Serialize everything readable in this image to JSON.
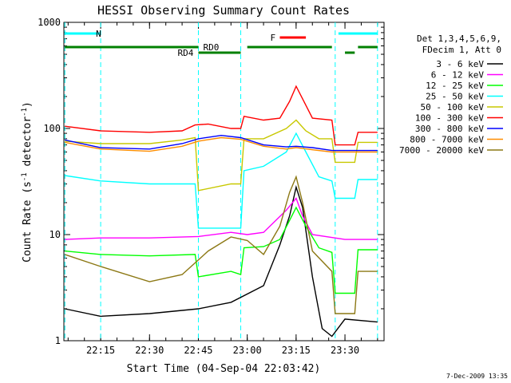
{
  "chart_data": {
    "type": "line",
    "title": "HESSI Observing Summary Count Rates",
    "xlabel": "Start Time (04-Sep-04 22:03:42)",
    "ylabel_main": "Count Rate (s",
    "ylabel_sup": "-1",
    "ylabel_mid": " detector",
    "ylabel_end": ")",
    "y_scale": "log",
    "ylim": [
      1,
      1000
    ],
    "xlim": [
      "22:03:42",
      "23:42:00"
    ],
    "y_ticks": [
      "1",
      "10",
      "100",
      "1000"
    ],
    "x_ticks": [
      "22:15",
      "22:30",
      "22:45",
      "23:00",
      "23:15",
      "23:30"
    ],
    "grid": false,
    "legend_placement": "right",
    "legend_header": [
      "Det 1,3,4,5,6,9,",
      "FDecim 1, Att 0"
    ],
    "footer": "7-Dec-2009 13:35",
    "series": [
      {
        "name": "3 - 6 keV",
        "color": "#000000",
        "points": [
          [
            "22:04",
            2.0
          ],
          [
            "22:15",
            1.7
          ],
          [
            "22:30",
            1.8
          ],
          [
            "22:45",
            2.0
          ],
          [
            "22:55",
            2.3
          ],
          [
            "23:05",
            3.3
          ],
          [
            "23:10",
            8
          ],
          [
            "23:13",
            15
          ],
          [
            "23:15",
            28
          ],
          [
            "23:17",
            18
          ],
          [
            "23:20",
            4
          ],
          [
            "23:23",
            1.3
          ],
          [
            "23:26",
            1.1
          ],
          [
            "23:30",
            1.6
          ],
          [
            "23:40",
            1.5
          ]
        ]
      },
      {
        "name": "6 - 12 keV",
        "color": "#ff00ff",
        "points": [
          [
            "22:04",
            9.0
          ],
          [
            "22:15",
            9.3
          ],
          [
            "22:30",
            9.3
          ],
          [
            "22:45",
            9.6
          ],
          [
            "22:55",
            10.5
          ],
          [
            "23:00",
            10.0
          ],
          [
            "23:05",
            10.5
          ],
          [
            "23:12",
            17
          ],
          [
            "23:15",
            22
          ],
          [
            "23:17",
            15
          ],
          [
            "23:20",
            10
          ],
          [
            "23:30",
            9.0
          ],
          [
            "23:40",
            9.0
          ]
        ]
      },
      {
        "name": "12 - 25 keV",
        "color": "#00ff00",
        "points": [
          [
            "22:04",
            7.0
          ],
          [
            "22:15",
            6.5
          ],
          [
            "22:30",
            6.3
          ],
          [
            "22:44",
            6.5
          ],
          [
            "22:45",
            4.0
          ],
          [
            "22:55",
            4.5
          ],
          [
            "22:58",
            4.2
          ],
          [
            "22:59",
            7.5
          ],
          [
            "23:05",
            7.7
          ],
          [
            "23:10",
            9.0
          ],
          [
            "23:15",
            18
          ],
          [
            "23:18",
            12
          ],
          [
            "23:22",
            7.5
          ],
          [
            "23:26",
            6.8
          ],
          [
            "23:27",
            2.8
          ],
          [
            "23:33",
            2.8
          ],
          [
            "23:34",
            7.2
          ],
          [
            "23:40",
            7.2
          ]
        ]
      },
      {
        "name": "25 - 50 keV",
        "color": "#00ffff",
        "points": [
          [
            "22:04",
            36
          ],
          [
            "22:15",
            32
          ],
          [
            "22:30",
            30
          ],
          [
            "22:44",
            30
          ],
          [
            "22:45",
            11.5
          ],
          [
            "22:55",
            11.5
          ],
          [
            "22:58",
            11.5
          ],
          [
            "22:59",
            40
          ],
          [
            "23:05",
            44
          ],
          [
            "23:12",
            60
          ],
          [
            "23:15",
            90
          ],
          [
            "23:18",
            60
          ],
          [
            "23:22",
            35
          ],
          [
            "23:26",
            32
          ],
          [
            "23:27",
            22
          ],
          [
            "23:33",
            22
          ],
          [
            "23:34",
            33
          ],
          [
            "23:40",
            33
          ]
        ]
      },
      {
        "name": "50 - 100 keV",
        "color": "#c8c800",
        "points": [
          [
            "22:04",
            76
          ],
          [
            "22:15",
            72
          ],
          [
            "22:30",
            72
          ],
          [
            "22:40",
            78
          ],
          [
            "22:44",
            82
          ],
          [
            "22:45",
            26
          ],
          [
            "22:55",
            30
          ],
          [
            "22:58",
            30
          ],
          [
            "22:59",
            80
          ],
          [
            "23:05",
            80
          ],
          [
            "23:12",
            100
          ],
          [
            "23:15",
            120
          ],
          [
            "23:18",
            95
          ],
          [
            "23:22",
            80
          ],
          [
            "23:26",
            80
          ],
          [
            "23:27",
            48
          ],
          [
            "23:33",
            48
          ],
          [
            "23:34",
            74
          ],
          [
            "23:40",
            74
          ]
        ]
      },
      {
        "name": "100 - 300 keV",
        "color": "#ff0000",
        "points": [
          [
            "22:04",
            105
          ],
          [
            "22:15",
            95
          ],
          [
            "22:30",
            92
          ],
          [
            "22:40",
            95
          ],
          [
            "22:44",
            108
          ],
          [
            "22:48",
            110
          ],
          [
            "22:55",
            100
          ],
          [
            "22:58",
            100
          ],
          [
            "22:59",
            130
          ],
          [
            "23:05",
            120
          ],
          [
            "23:10",
            125
          ],
          [
            "23:13",
            180
          ],
          [
            "23:15",
            250
          ],
          [
            "23:17",
            190
          ],
          [
            "23:20",
            125
          ],
          [
            "23:26",
            120
          ],
          [
            "23:27",
            70
          ],
          [
            "23:33",
            70
          ],
          [
            "23:34",
            92
          ],
          [
            "23:40",
            92
          ]
        ]
      },
      {
        "name": "300 - 800 keV",
        "color": "#0000ff",
        "points": [
          [
            "22:04",
            78
          ],
          [
            "22:15",
            66
          ],
          [
            "22:30",
            64
          ],
          [
            "22:40",
            72
          ],
          [
            "22:45",
            80
          ],
          [
            "22:52",
            86
          ],
          [
            "22:58",
            82
          ],
          [
            "23:05",
            70
          ],
          [
            "23:12",
            67
          ],
          [
            "23:15",
            68
          ],
          [
            "23:20",
            66
          ],
          [
            "23:26",
            62
          ],
          [
            "23:40",
            62
          ]
        ]
      },
      {
        "name": "800 - 7000 keV",
        "color": "#ff8c00",
        "points": [
          [
            "22:04",
            74
          ],
          [
            "22:15",
            64
          ],
          [
            "22:30",
            61
          ],
          [
            "22:40",
            68
          ],
          [
            "22:45",
            76
          ],
          [
            "22:52",
            82
          ],
          [
            "22:58",
            79
          ],
          [
            "23:05",
            68
          ],
          [
            "23:12",
            64
          ],
          [
            "23:15",
            66
          ],
          [
            "23:20",
            63
          ],
          [
            "23:26",
            60
          ],
          [
            "23:40",
            60
          ]
        ]
      },
      {
        "name": "7000 - 20000 keV",
        "color": "#8c7814",
        "points": [
          [
            "22:04",
            6.5
          ],
          [
            "22:15",
            5.0
          ],
          [
            "22:30",
            3.6
          ],
          [
            "22:40",
            4.2
          ],
          [
            "22:48",
            7.0
          ],
          [
            "22:55",
            9.5
          ],
          [
            "23:00",
            8.8
          ],
          [
            "23:05",
            6.5
          ],
          [
            "23:10",
            12
          ],
          [
            "23:13",
            25
          ],
          [
            "23:15",
            35
          ],
          [
            "23:17",
            20
          ],
          [
            "23:20",
            7
          ],
          [
            "23:26",
            4.5
          ],
          [
            "23:27",
            1.8
          ],
          [
            "23:33",
            1.8
          ],
          [
            "23:34",
            4.5
          ],
          [
            "23:40",
            4.5
          ]
        ]
      }
    ],
    "annotations": {
      "night": {
        "label": "N",
        "color": "#00ffff",
        "segments": [
          [
            "22:04",
            "22:15"
          ],
          [
            "23:28",
            "23:40"
          ]
        ]
      },
      "saa": {
        "label": "",
        "color": "#00ffff",
        "segments": []
      },
      "flare": {
        "label": "F",
        "color": "#ff0000",
        "segments": [
          [
            "23:10",
            "23:18"
          ]
        ]
      },
      "rd0": {
        "label": "RD0",
        "color": "#008000",
        "segments": [
          [
            "22:04",
            "22:45"
          ],
          [
            "23:00",
            "23:26"
          ],
          [
            "23:34",
            "23:40"
          ]
        ]
      },
      "rd4": {
        "label": "RD4",
        "color": "#008000",
        "segments": [
          [
            "22:45",
            "22:58"
          ],
          [
            "23:30",
            "23:33"
          ]
        ]
      }
    },
    "vlines_cyan": [
      "22:04",
      "22:15",
      "22:45",
      "22:58",
      "23:27",
      "23:40"
    ]
  }
}
